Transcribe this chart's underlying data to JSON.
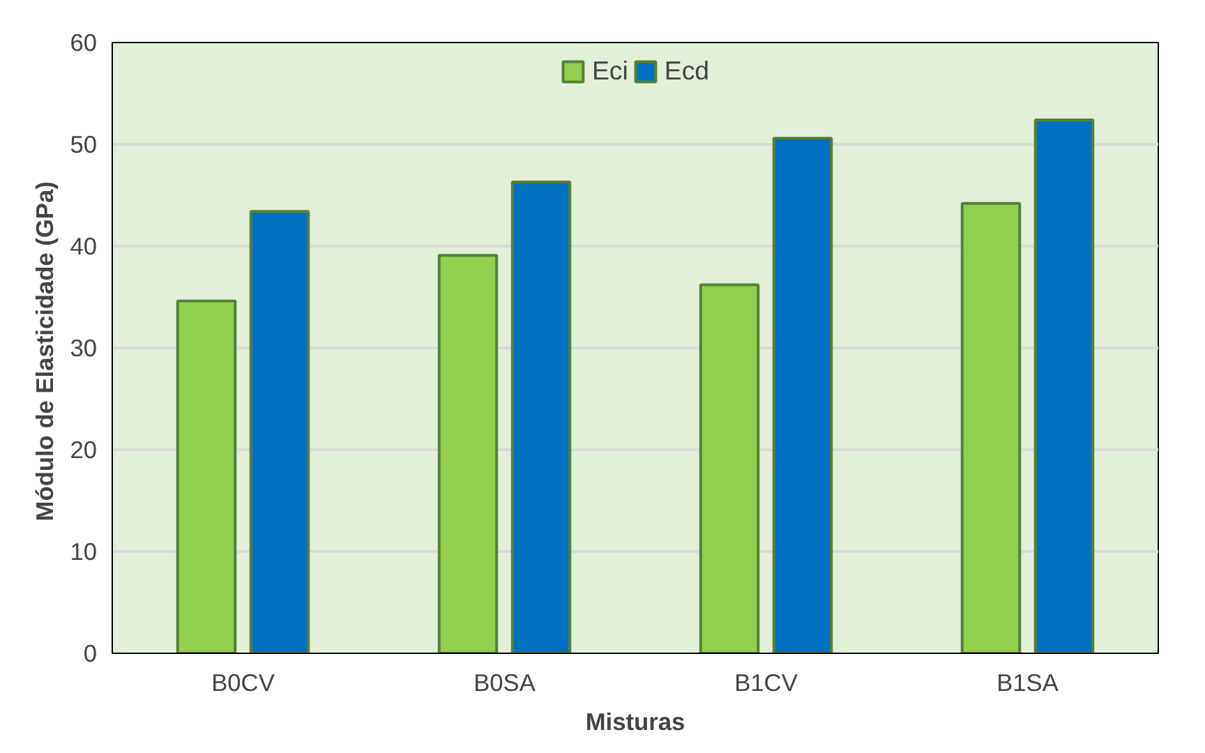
{
  "chart_data": {
    "type": "bar",
    "xlabel": "Misturas",
    "ylabel": "Módulo de Elasticidade  (GPa)",
    "categories": [
      "B0CV",
      "B0SA",
      "B1CV",
      "B1SA"
    ],
    "series": [
      {
        "name": "Eci",
        "color": "#92d050",
        "values": [
          34.6,
          39.1,
          36.2,
          44.2
        ]
      },
      {
        "name": "Ecd",
        "color": "#0070c0",
        "values": [
          43.4,
          46.3,
          50.6,
          52.4
        ]
      }
    ],
    "ylim": [
      0,
      60
    ],
    "yticks": [
      0,
      10,
      20,
      30,
      40,
      50,
      60
    ],
    "grid": "y",
    "legend": "top"
  }
}
